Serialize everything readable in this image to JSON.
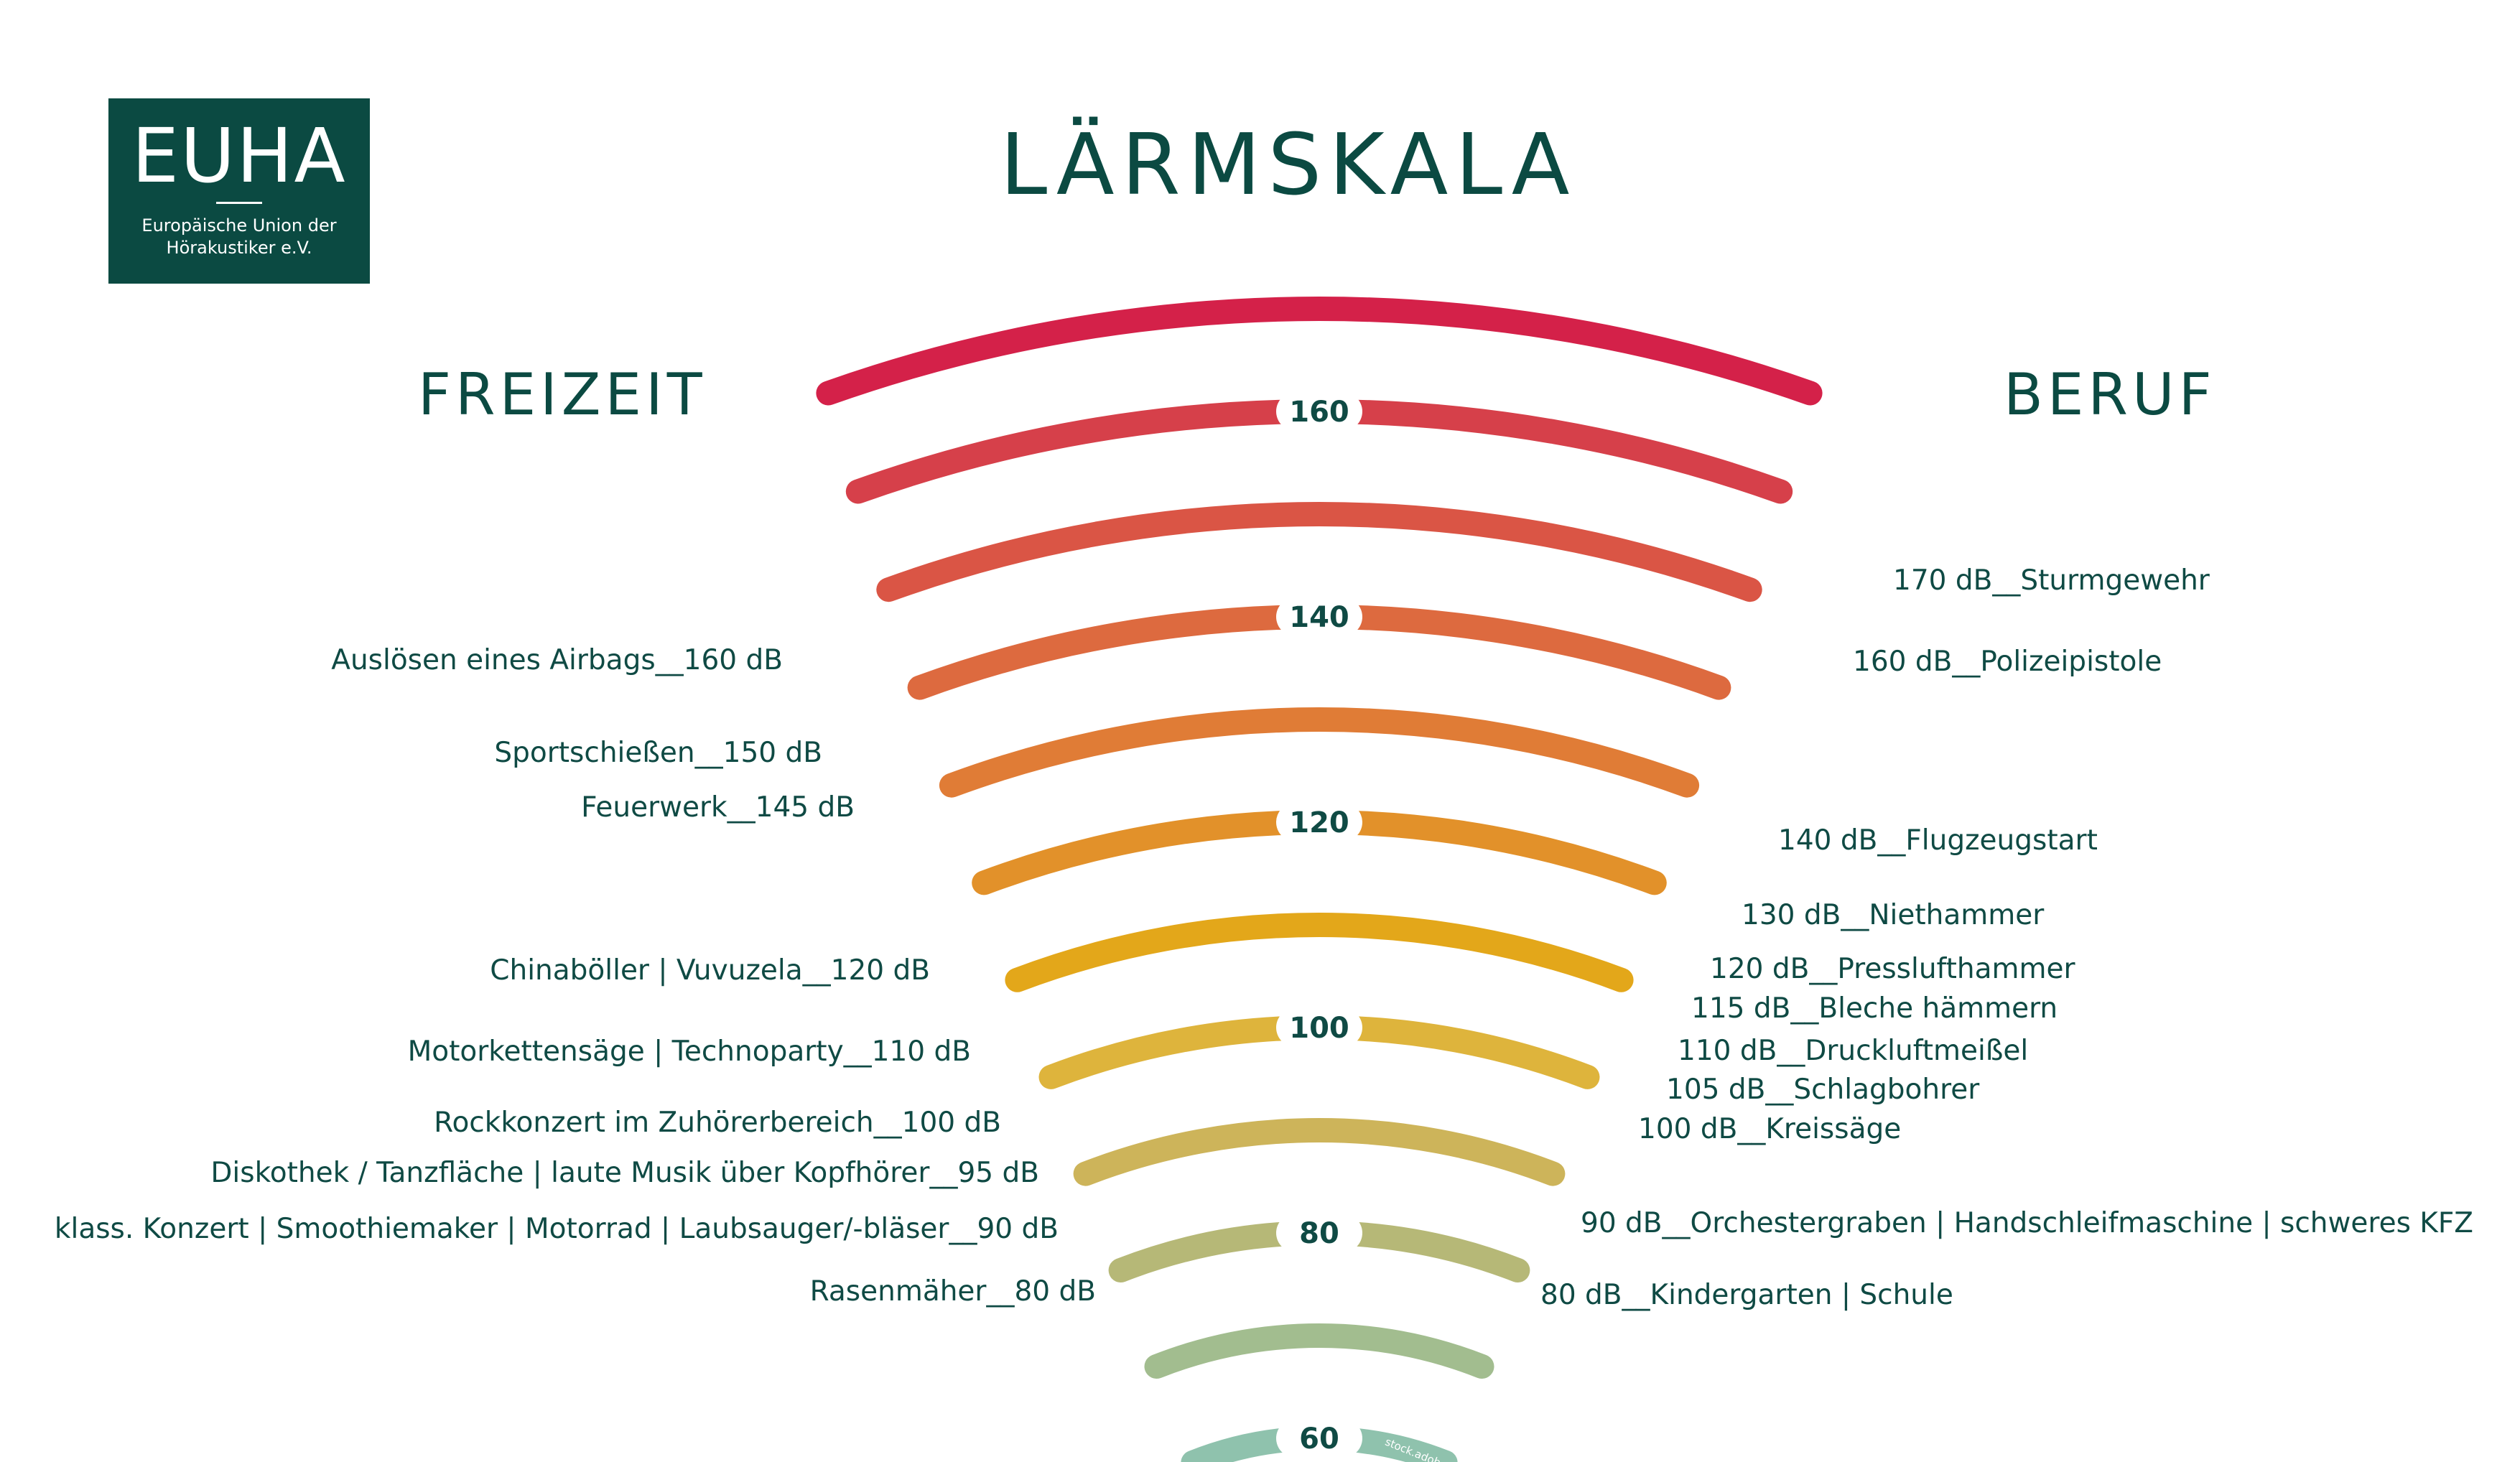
{
  "logo": {
    "brand": "EUHA",
    "tagline_1": "Europäische Union der",
    "tagline_2": "Hörakustiker e.V."
  },
  "title": "LÄRMSKALA",
  "left_heading": "FREIZEIT",
  "right_heading": "BERUF",
  "colors": {
    "text": "#0f4a44",
    "logo_bg": "#0b4a42"
  },
  "chart_data": {
    "type": "concentric-arc-scale",
    "unit": "dB",
    "rings": [
      {
        "level": 170,
        "color": "#d42149"
      },
      {
        "level": 160,
        "color": "#d6404a"
      },
      {
        "level": 150,
        "color": "#da5545"
      },
      {
        "level": 140,
        "color": "#dd6a3f"
      },
      {
        "level": 130,
        "color": "#e07c36"
      },
      {
        "level": 120,
        "color": "#e2912a"
      },
      {
        "level": 110,
        "color": "#e3a71a"
      },
      {
        "level": 100,
        "color": "#deb43c"
      },
      {
        "level": 90,
        "color": "#cdb45a"
      },
      {
        "level": 80,
        "color": "#b6b877"
      },
      {
        "level": 70,
        "color": "#a2bd8f"
      },
      {
        "level": 60,
        "color": "#8fc2ad"
      }
    ],
    "tick_labels": [
      "160",
      "140",
      "120",
      "100",
      "80",
      "60"
    ],
    "left_labels": [
      "Auslösen eines Airbags__160 dB",
      "Sportschießen__150 dB",
      "Feuerwerk__145 dB",
      "Chinaböller  |  Vuvuzela__120 dB",
      "Motorkettensäge  |  Technoparty__110 dB",
      "Rockkonzert im Zuhörerbereich__100 dB",
      "Diskothek / Tanzfläche  |  laute Musik über Kopfhörer__95 dB",
      "klass. Konzert  |  Smoothiemaker  |  Motorrad  |  Laubsauger/-bläser__90 dB",
      "Rasenmäher__80 dB"
    ],
    "right_labels": [
      "170 dB__Sturmgewehr",
      "160 dB__Polizeipistole",
      "140 dB__Flugzeugstart",
      "130 dB__Niethammer",
      "120 dB__Presslufthammer",
      "115 dB__Bleche hämmern",
      "110 dB__Druckluftmeißel",
      "105 dB__Schlagbohrer",
      "100 dB__Kreissäge",
      "90 dB__Orchestergraben  |  Handschleifmaschine  |  schweres KFZ",
      "80 dB__Kindergarten  |  Schule"
    ],
    "watermark": "stock.adobe.com"
  }
}
